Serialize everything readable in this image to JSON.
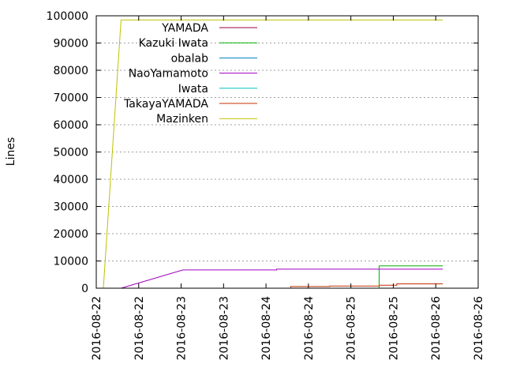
{
  "chart_data": {
    "type": "line",
    "title": "",
    "xlabel": "",
    "ylabel": "Lines",
    "x_unit": "hours",
    "xlim": [
      0,
      108
    ],
    "ylim": [
      0,
      100000
    ],
    "x_ticks": [
      {
        "value": 0,
        "label": "2016-08-22"
      },
      {
        "value": 12,
        "label": "2016-08-22"
      },
      {
        "value": 24,
        "label": "2016-08-23"
      },
      {
        "value": 36,
        "label": "2016-08-23"
      },
      {
        "value": 48,
        "label": "2016-08-24"
      },
      {
        "value": 60,
        "label": "2016-08-24"
      },
      {
        "value": 72,
        "label": "2016-08-25"
      },
      {
        "value": 84,
        "label": "2016-08-25"
      },
      {
        "value": 96,
        "label": "2016-08-26"
      },
      {
        "value": 108,
        "label": "2016-08-26"
      }
    ],
    "y_ticks": [
      {
        "value": 0,
        "label": "0"
      },
      {
        "value": 10000,
        "label": "10000"
      },
      {
        "value": 20000,
        "label": "20000"
      },
      {
        "value": 30000,
        "label": "30000"
      },
      {
        "value": 40000,
        "label": "40000"
      },
      {
        "value": 50000,
        "label": "50000"
      },
      {
        "value": 60000,
        "label": "60000"
      },
      {
        "value": 70000,
        "label": "70000"
      },
      {
        "value": 80000,
        "label": "80000"
      },
      {
        "value": 90000,
        "label": "90000"
      },
      {
        "value": 100000,
        "label": "100000"
      }
    ],
    "grid": true,
    "legend_position": "top-left",
    "series": [
      {
        "name": "YAMADA",
        "color": "#a00040",
        "points": [
          [
            57,
            0
          ],
          [
            96,
            0
          ],
          [
            98,
            0
          ]
        ]
      },
      {
        "name": "Kazuki Iwata",
        "color": "#00b000",
        "points": [
          [
            57,
            0
          ],
          [
            80,
            0
          ],
          [
            80,
            8200
          ],
          [
            98,
            8200
          ]
        ]
      },
      {
        "name": "obalab",
        "color": "#0080c0",
        "points": [
          [
            42,
            0
          ],
          [
            98,
            0
          ]
        ]
      },
      {
        "name": "NaoYamamoto",
        "color": "#a000c0",
        "points": [
          [
            7,
            0
          ],
          [
            24.5,
            6700
          ],
          [
            51,
            6700
          ],
          [
            51,
            7000
          ],
          [
            98,
            7000
          ]
        ]
      },
      {
        "name": "Iwata",
        "color": "#00c0c0",
        "points": [
          [
            57,
            0
          ],
          [
            98,
            0
          ]
        ]
      },
      {
        "name": "TakayaYAMADA",
        "color": "#c03000",
        "points": [
          [
            55,
            0
          ],
          [
            55,
            600
          ],
          [
            66,
            600
          ],
          [
            66,
            800
          ],
          [
            80,
            800
          ],
          [
            80,
            1100
          ],
          [
            85,
            1100
          ],
          [
            85,
            1600
          ],
          [
            98,
            1600
          ]
        ]
      },
      {
        "name": "Mazinken",
        "color": "#c0c000",
        "points": [
          [
            2,
            0
          ],
          [
            7,
            98500
          ],
          [
            98,
            98500
          ]
        ]
      }
    ]
  }
}
